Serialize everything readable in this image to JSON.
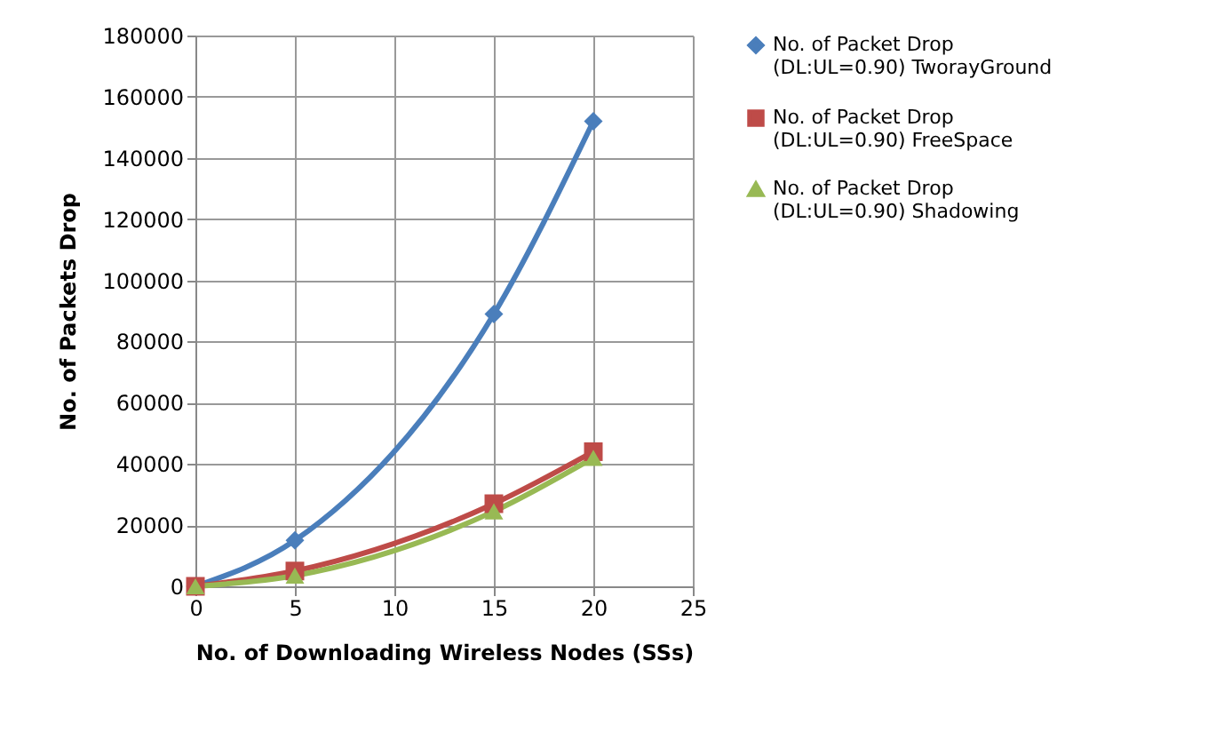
{
  "chart_data": {
    "type": "line",
    "xlabel": "No. of Downloading Wireless Nodes (SSs)",
    "ylabel": "No. of Packets Drop",
    "x": [
      0,
      5,
      15,
      20
    ],
    "xlim": [
      0,
      25
    ],
    "xticks": [
      0,
      5,
      10,
      15,
      20,
      25
    ],
    "ylim": [
      0,
      180000
    ],
    "yticks": [
      0,
      20000,
      40000,
      60000,
      80000,
      100000,
      120000,
      140000,
      160000,
      180000
    ],
    "grid": true,
    "legend": "right",
    "line_style": "solid",
    "series": [
      {
        "name": "No. of Packet Drop\n(DL:UL=0.90) TworayGround",
        "color": "#4a7ebb",
        "marker": "diamond",
        "values": [
          0,
          15000,
          89000,
          152000
        ]
      },
      {
        "name": "No. of Packet Drop\n(DL:UL=0.90) FreeSpace",
        "color": "#be4b48",
        "marker": "square",
        "values": [
          0,
          5000,
          27000,
          44000
        ]
      },
      {
        "name": "No. of Packet Drop\n(DL:UL=0.90) Shadowing",
        "color": "#98b954",
        "marker": "triangle",
        "values": [
          0,
          3500,
          24500,
          42000
        ]
      }
    ]
  }
}
